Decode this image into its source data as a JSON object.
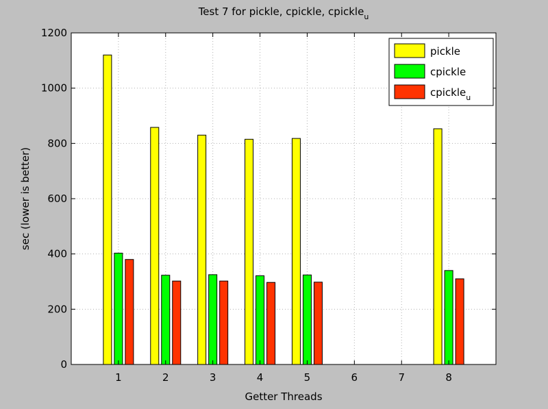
{
  "chart_data": {
    "type": "bar",
    "title": "Test 7 for pickle, cpickle, cpickle",
    "title_subscript": "u",
    "xlabel": "Getter Threads",
    "ylabel": "sec (lower is better)",
    "categories": [
      "1",
      "2",
      "3",
      "4",
      "5",
      "6",
      "7",
      "8"
    ],
    "x_ticks": [
      "1",
      "2",
      "3",
      "4",
      "5",
      "6",
      "7",
      "8"
    ],
    "y_ticks": [
      "0",
      "200",
      "400",
      "600",
      "800",
      "1000",
      "1200"
    ],
    "xlim": [
      0,
      9
    ],
    "ylim": [
      0,
      1200
    ],
    "grid": true,
    "legend_position": "top-right",
    "series": [
      {
        "name": "pickle",
        "color": "#ffff00",
        "values": [
          1120,
          858,
          830,
          815,
          818,
          null,
          null,
          853
        ]
      },
      {
        "name": "cpickle",
        "color": "#00ff00",
        "values": [
          403,
          323,
          325,
          321,
          324,
          null,
          null,
          340
        ]
      },
      {
        "name": "cpickle",
        "name_subscript": "u",
        "color": "#ff3300",
        "values": [
          380,
          302,
          302,
          297,
          298,
          null,
          null,
          310
        ]
      }
    ]
  }
}
